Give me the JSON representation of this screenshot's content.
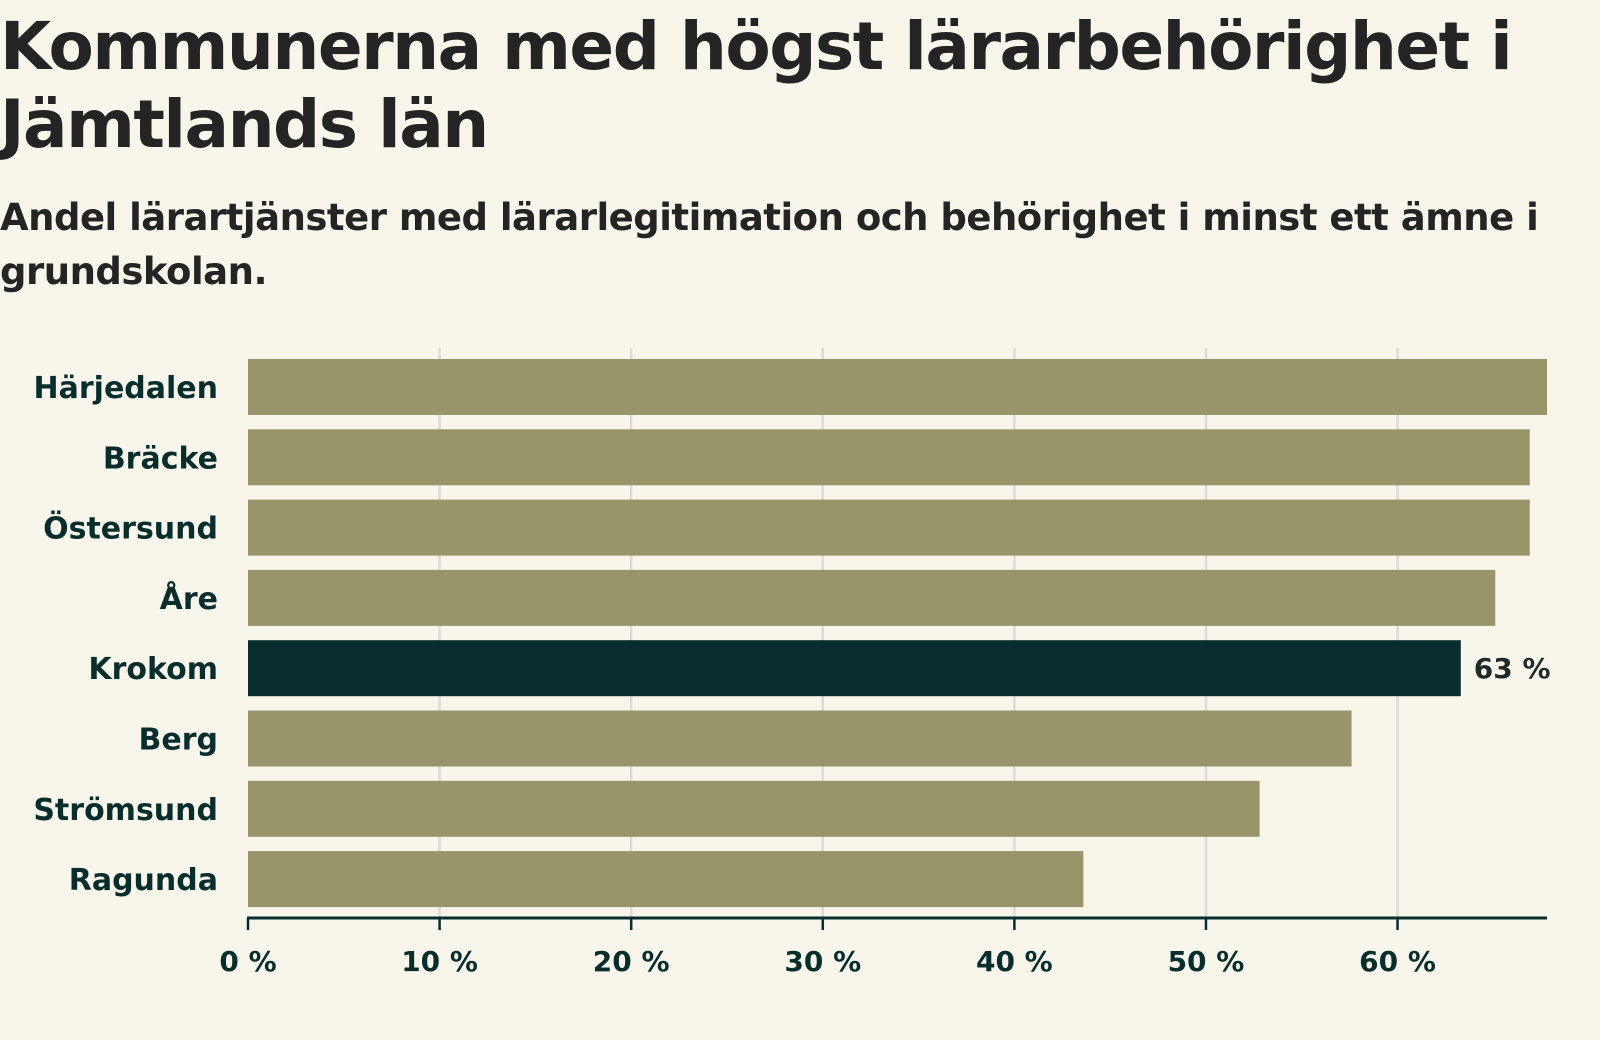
{
  "chart_data": {
    "type": "bar",
    "orientation": "horizontal",
    "title": "Kommunerna med högst lärarbehörighet i Jämtlands län",
    "subtitle": "Andel lärartjänster med lärarlegitimation och behörighet i minst ett ämne i grundskolan.",
    "categories": [
      "Härjedalen",
      "Bräcke",
      "Östersund",
      "Åre",
      "Krokom",
      "Berg",
      "Strömsund",
      "Ragunda"
    ],
    "values": [
      67.8,
      66.9,
      66.9,
      65.1,
      63.3,
      57.6,
      52.8,
      43.6
    ],
    "highlight": "Krokom",
    "highlight_label": "63 %",
    "xlim": [
      0,
      67.8
    ],
    "xticks": [
      0,
      10,
      20,
      30,
      40,
      50,
      60
    ],
    "xtick_labels": [
      "0 %",
      "10 %",
      "20 %",
      "30 %",
      "40 %",
      "50 %",
      "60 %"
    ],
    "grid": true,
    "xlabel": "",
    "ylabel": "",
    "colors": {
      "bar": "#99956b",
      "highlight": "#082d2d",
      "grid": "#dcdcd6",
      "axis": "#072d2d",
      "background": "#f8f6ea"
    }
  }
}
